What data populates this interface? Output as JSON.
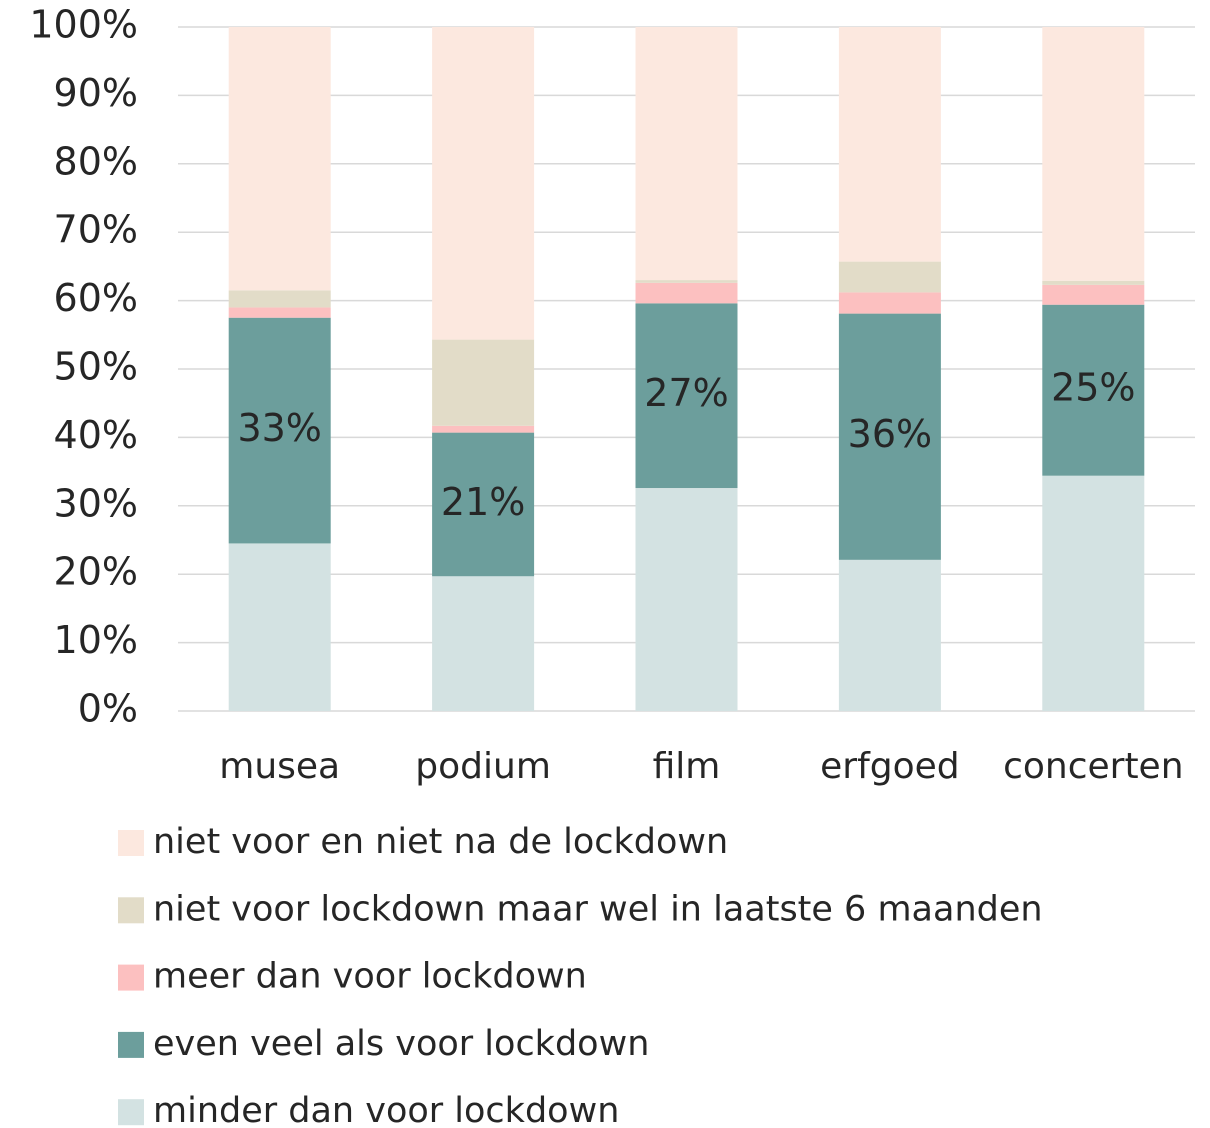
{
  "chart_data": {
    "type": "stacked_bar",
    "categories": [
      "musea",
      "podium",
      "film",
      "erfgoed",
      "concerten"
    ],
    "series": [
      {
        "name": "minder dan voor lockdown",
        "color": "#d3e2e2",
        "values": [
          24.5,
          19.7,
          32.6,
          22.1,
          34.4
        ]
      },
      {
        "name": "even veel als voor lockdown",
        "color": "#6c9e9c",
        "values": [
          33,
          21,
          27,
          36,
          25
        ],
        "value_labels": [
          "33%",
          "21%",
          "27%",
          "36%",
          "25%"
        ]
      },
      {
        "name": "meer dan voor lockdown",
        "color": "#fcc0c0",
        "values": [
          1.5,
          1,
          3,
          3.1,
          2.9
        ]
      },
      {
        "name": "niet voor lockdown maar wel in laatste 6 maanden",
        "color": "#e2dcc8",
        "values": [
          2.5,
          12.6,
          0.4,
          4.5,
          0.6
        ]
      },
      {
        "name": "niet voor en niet na de lockdown",
        "color": "#fce8df",
        "values": [
          38.5,
          45.7,
          37,
          34.3,
          37.1
        ]
      }
    ],
    "ylim": [
      0,
      100
    ],
    "yticks": [
      {
        "value": 0,
        "label": "0%"
      },
      {
        "value": 10,
        "label": "10%"
      },
      {
        "value": 20,
        "label": "20%"
      },
      {
        "value": 30,
        "label": "30%"
      },
      {
        "value": 40,
        "label": "40%"
      },
      {
        "value": 50,
        "label": "50%"
      },
      {
        "value": 60,
        "label": "60%"
      },
      {
        "value": 70,
        "label": "70%"
      },
      {
        "value": 80,
        "label": "80%"
      },
      {
        "value": 90,
        "label": "90%"
      },
      {
        "value": 100,
        "label": "100%"
      }
    ],
    "grid": true
  }
}
